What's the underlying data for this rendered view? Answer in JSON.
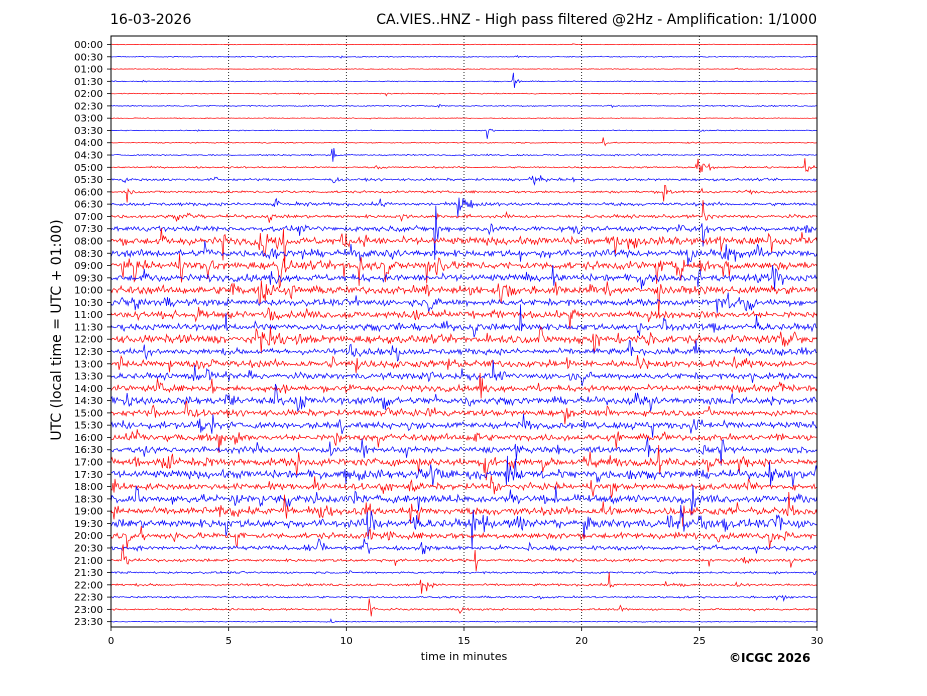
{
  "header": {
    "date": "16-03-2026",
    "title": "CA.VIES..HNZ - High pass filtered @2Hz - Amplification: 1/1000"
  },
  "footer": {
    "copyright": "©ICGC 2026"
  },
  "colors": {
    "odd_trace": "#ff0000",
    "even_trace": "#0000ff",
    "axes": "#000000",
    "grid": "#000000"
  },
  "chart_data": {
    "type": "line",
    "title": "CA.VIES..HNZ - High pass filtered @2Hz - Amplification: 1/1000",
    "xlabel": "time in minutes",
    "ylabel": "UTC (local time = UTC + 01:00)",
    "xlim": [
      0,
      30
    ],
    "x_ticks": [
      0,
      5,
      10,
      15,
      20,
      25,
      30
    ],
    "grid": "vertical dotted at 5-minute marks",
    "series_colors": [
      "red",
      "blue"
    ],
    "rows": [
      "00:00",
      "00:30",
      "01:00",
      "01:30",
      "02:00",
      "02:30",
      "03:00",
      "03:30",
      "04:00",
      "04:30",
      "05:00",
      "05:30",
      "06:00",
      "06:30",
      "07:00",
      "07:30",
      "08:00",
      "08:30",
      "09:00",
      "09:30",
      "10:00",
      "10:30",
      "11:00",
      "11:30",
      "12:00",
      "12:30",
      "13:00",
      "13:30",
      "14:00",
      "14:30",
      "15:00",
      "15:30",
      "16:00",
      "16:30",
      "17:00",
      "17:30",
      "18:00",
      "18:30",
      "19:00",
      "19:30",
      "20:00",
      "20:30",
      "21:00",
      "21:30",
      "22:00",
      "22:30",
      "23:00",
      "23:30"
    ],
    "noise_level": [
      0.3,
      0.4,
      0.3,
      0.4,
      0.4,
      0.5,
      0.3,
      0.4,
      0.4,
      0.6,
      0.7,
      1.0,
      1.0,
      1.4,
      1.4,
      2.2,
      3.2,
      3.0,
      3.4,
      3.0,
      3.2,
      2.8,
      2.8,
      2.8,
      3.4,
      2.6,
      3.0,
      2.6,
      2.6,
      3.0,
      2.6,
      2.8,
      2.6,
      2.6,
      3.2,
      3.4,
      2.6,
      3.2,
      3.2,
      3.6,
      2.6,
      1.8,
      1.2,
      0.9,
      1.0,
      0.8,
      0.8,
      0.4
    ],
    "events": [
      {
        "row": 3,
        "minute": 17.1,
        "amp": 6,
        "dur": 0.4
      },
      {
        "row": 7,
        "minute": 16.0,
        "amp": 5,
        "dur": 0.3
      },
      {
        "row": 8,
        "minute": 20.9,
        "amp": 5,
        "dur": 0.3
      },
      {
        "row": 9,
        "minute": 9.4,
        "amp": 8,
        "dur": 0.3
      },
      {
        "row": 10,
        "minute": 24.9,
        "amp": 10,
        "dur": 0.6
      },
      {
        "row": 10,
        "minute": 29.5,
        "amp": 10,
        "dur": 0.4
      },
      {
        "row": 11,
        "minute": 17.8,
        "amp": 6,
        "dur": 0.8
      },
      {
        "row": 12,
        "minute": 0.7,
        "amp": 6,
        "dur": 0.3
      },
      {
        "row": 12,
        "minute": 23.5,
        "amp": 8,
        "dur": 0.5
      },
      {
        "row": 13,
        "minute": 6.9,
        "amp": 8,
        "dur": 0.4
      },
      {
        "row": 13,
        "minute": 14.8,
        "amp": 7,
        "dur": 1.0
      },
      {
        "row": 14,
        "minute": 3.1,
        "amp": 5,
        "dur": 0.8
      },
      {
        "row": 14,
        "minute": 25.2,
        "amp": 9,
        "dur": 0.5
      },
      {
        "row": 15,
        "minute": 13.8,
        "amp": 26,
        "dur": 0.2
      },
      {
        "row": 15,
        "minute": 25.2,
        "amp": 14,
        "dur": 0.3
      },
      {
        "row": 16,
        "minute": 6.5,
        "amp": 14,
        "dur": 0.4
      },
      {
        "row": 16,
        "minute": 7.3,
        "amp": 18,
        "dur": 0.4
      },
      {
        "row": 17,
        "minute": 4.0,
        "amp": 10,
        "dur": 0.5
      },
      {
        "row": 17,
        "minute": 24.5,
        "amp": 10,
        "dur": 0.6
      },
      {
        "row": 18,
        "minute": 4.1,
        "amp": 10,
        "dur": 0.6
      },
      {
        "row": 18,
        "minute": 7.1,
        "amp": 14,
        "dur": 0.6
      },
      {
        "row": 18,
        "minute": 13.8,
        "amp": 12,
        "dur": 0.3
      },
      {
        "row": 20,
        "minute": 5.1,
        "amp": 9,
        "dur": 0.6
      },
      {
        "row": 20,
        "minute": 16.5,
        "amp": 10,
        "dur": 0.8
      },
      {
        "row": 21,
        "minute": 27.0,
        "amp": 9,
        "dur": 0.8
      },
      {
        "row": 22,
        "minute": 6.7,
        "amp": 8,
        "dur": 0.4
      },
      {
        "row": 23,
        "minute": 17.4,
        "amp": 10,
        "dur": 0.3
      },
      {
        "row": 24,
        "minute": 7.0,
        "amp": 9,
        "dur": 0.5
      },
      {
        "row": 24,
        "minute": 19.9,
        "amp": 8,
        "dur": 0.6
      },
      {
        "row": 25,
        "minute": 28.4,
        "amp": 10,
        "dur": 0.3
      },
      {
        "row": 26,
        "minute": 10.4,
        "amp": 8,
        "dur": 0.4
      },
      {
        "row": 27,
        "minute": 13.5,
        "amp": 12,
        "dur": 0.4
      },
      {
        "row": 28,
        "minute": 15.7,
        "amp": 10,
        "dur": 0.4
      },
      {
        "row": 29,
        "minute": 4.9,
        "amp": 7,
        "dur": 0.8
      },
      {
        "row": 30,
        "minute": 19.3,
        "amp": 8,
        "dur": 0.4
      },
      {
        "row": 31,
        "minute": 24.9,
        "amp": 9,
        "dur": 0.7
      },
      {
        "row": 32,
        "minute": 4.6,
        "amp": 7,
        "dur": 0.4
      },
      {
        "row": 32,
        "minute": 28.3,
        "amp": 7,
        "dur": 0.5
      },
      {
        "row": 34,
        "minute": 15.9,
        "amp": 10,
        "dur": 0.8
      },
      {
        "row": 34,
        "minute": 20.1,
        "amp": 8,
        "dur": 1.0
      },
      {
        "row": 35,
        "minute": 16.8,
        "amp": 10,
        "dur": 1.0
      },
      {
        "row": 37,
        "minute": 7.5,
        "amp": 10,
        "dur": 0.4
      },
      {
        "row": 38,
        "minute": 7.4,
        "amp": 12,
        "dur": 0.6
      },
      {
        "row": 38,
        "minute": 8.8,
        "amp": 10,
        "dur": 0.5
      },
      {
        "row": 38,
        "minute": 28.8,
        "amp": 8,
        "dur": 0.4
      },
      {
        "row": 39,
        "minute": 10.9,
        "amp": 12,
        "dur": 0.6
      },
      {
        "row": 39,
        "minute": 25.0,
        "amp": 12,
        "dur": 0.6
      },
      {
        "row": 40,
        "minute": 5.3,
        "amp": 10,
        "dur": 0.4
      },
      {
        "row": 40,
        "minute": 0.7,
        "amp": 6,
        "dur": 0.3
      },
      {
        "row": 41,
        "minute": 8.8,
        "amp": 8,
        "dur": 0.5
      },
      {
        "row": 41,
        "minute": 10.8,
        "amp": 6,
        "dur": 0.4
      },
      {
        "row": 42,
        "minute": 0.5,
        "amp": 7,
        "dur": 0.3
      },
      {
        "row": 42,
        "minute": 15.5,
        "amp": 8,
        "dur": 0.3
      },
      {
        "row": 44,
        "minute": 21.2,
        "amp": 8,
        "dur": 0.2
      },
      {
        "row": 44,
        "minute": 13.2,
        "amp": 5,
        "dur": 0.3
      },
      {
        "row": 46,
        "minute": 11.0,
        "amp": 9,
        "dur": 0.4
      }
    ]
  }
}
